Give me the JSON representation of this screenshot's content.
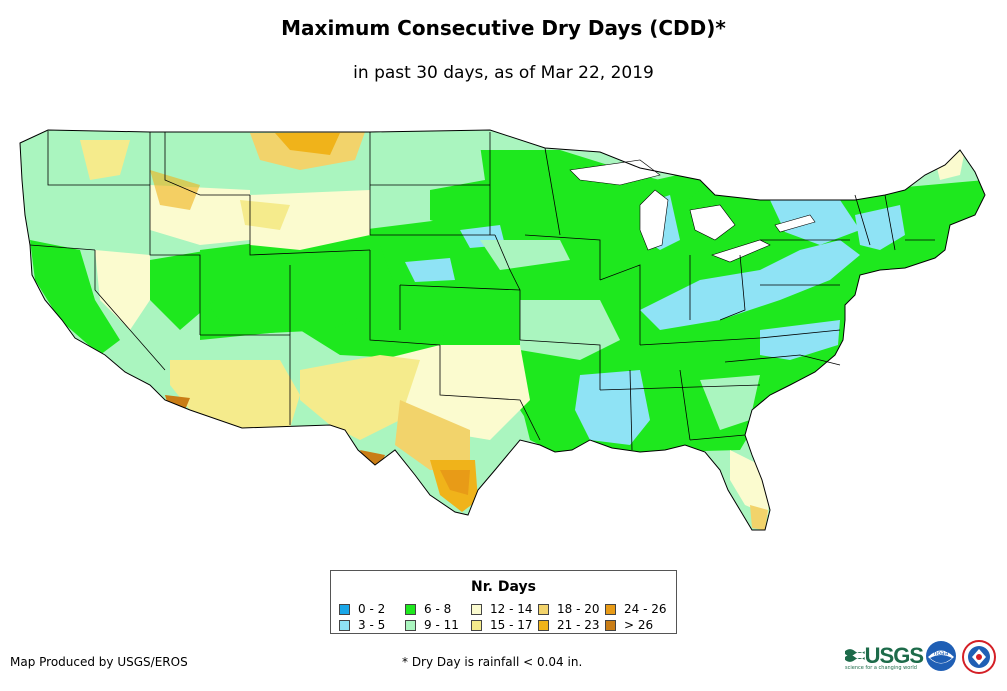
{
  "title": "Maximum Consecutive Dry Days (CDD)*",
  "subtitle": "in past 30 days, as of Mar 22, 2019",
  "legend": {
    "title": "Nr. Days",
    "items": [
      {
        "label": "0 - 2",
        "color": "#1aa7e8"
      },
      {
        "label": "3 - 5",
        "color": "#8fe3f5"
      },
      {
        "label": "6 - 8",
        "color": "#1ee81e"
      },
      {
        "label": "9 - 11",
        "color": "#aaf5bf"
      },
      {
        "label": "12 - 14",
        "color": "#fbfbcf"
      },
      {
        "label": "15 - 17",
        "color": "#f5eb8c"
      },
      {
        "label": "18 - 20",
        "color": "#f2d36b"
      },
      {
        "label": "21 - 23",
        "color": "#f0b31a"
      },
      {
        "label": "24 - 26",
        "color": "#e89b17"
      },
      {
        "label": "> 26",
        "color": "#c97d16"
      }
    ]
  },
  "credit": "Map Produced by USGS/EROS",
  "footnote": "* Dry Day is rainfall < 0.04 in.",
  "logos": {
    "usgs": "USGS",
    "usgs_tagline": "science for a changing world",
    "noaa": "noaa"
  }
}
